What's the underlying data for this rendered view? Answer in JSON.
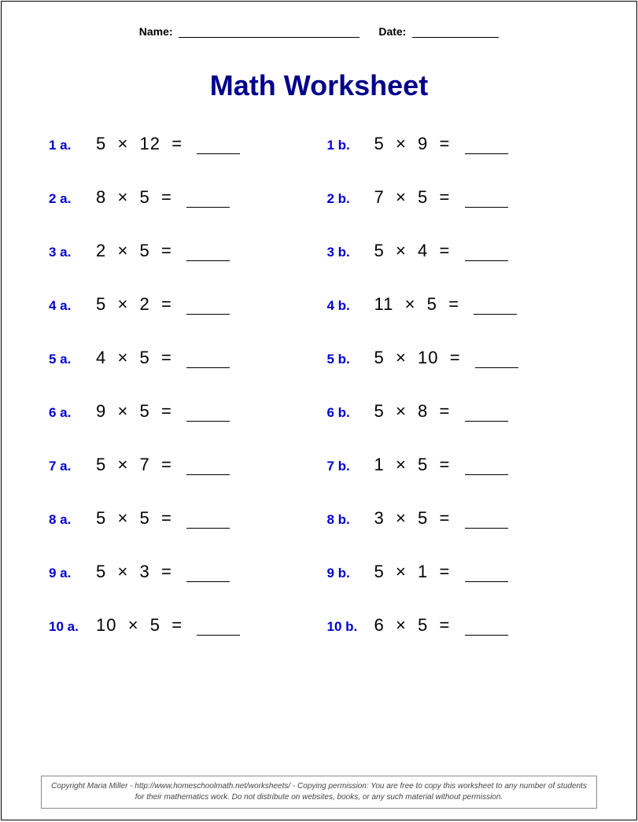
{
  "header": {
    "name_label": "Name:",
    "date_label": "Date:"
  },
  "title": "Math Worksheet",
  "problems": [
    {
      "label": "1 a.",
      "a": 5,
      "b": 12
    },
    {
      "label": "1 b.",
      "a": 5,
      "b": 9
    },
    {
      "label": "2 a.",
      "a": 8,
      "b": 5
    },
    {
      "label": "2 b.",
      "a": 7,
      "b": 5
    },
    {
      "label": "3 a.",
      "a": 2,
      "b": 5
    },
    {
      "label": "3 b.",
      "a": 5,
      "b": 4
    },
    {
      "label": "4 a.",
      "a": 5,
      "b": 2
    },
    {
      "label": "4 b.",
      "a": 11,
      "b": 5
    },
    {
      "label": "5 a.",
      "a": 4,
      "b": 5
    },
    {
      "label": "5 b.",
      "a": 5,
      "b": 10
    },
    {
      "label": "6 a.",
      "a": 9,
      "b": 5
    },
    {
      "label": "6 b.",
      "a": 5,
      "b": 8
    },
    {
      "label": "7 a.",
      "a": 5,
      "b": 7
    },
    {
      "label": "7 b.",
      "a": 1,
      "b": 5
    },
    {
      "label": "8 a.",
      "a": 5,
      "b": 5
    },
    {
      "label": "8 b.",
      "a": 3,
      "b": 5
    },
    {
      "label": "9 a.",
      "a": 5,
      "b": 3
    },
    {
      "label": "9 b.",
      "a": 5,
      "b": 1
    },
    {
      "label": "10 a.",
      "a": 10,
      "b": 5
    },
    {
      "label": "10 b.",
      "a": 6,
      "b": 5
    }
  ],
  "operator": "×",
  "equals": "=",
  "footer": "Copyright Maria Miller - http://www.homeschoolmath.net/worksheets/ - Copying permission: You are free to copy this worksheet to any number of students for their mathematics work. Do not distribute on websites, books, or any such material without permission.",
  "colors": {
    "title": "#00008b",
    "label": "#0000cd",
    "text": "#000000",
    "background": "#ffffff"
  },
  "fonts": {
    "title_size": 36,
    "label_size": 17,
    "expr_size": 22,
    "header_size": 14,
    "footer_size": 10
  }
}
